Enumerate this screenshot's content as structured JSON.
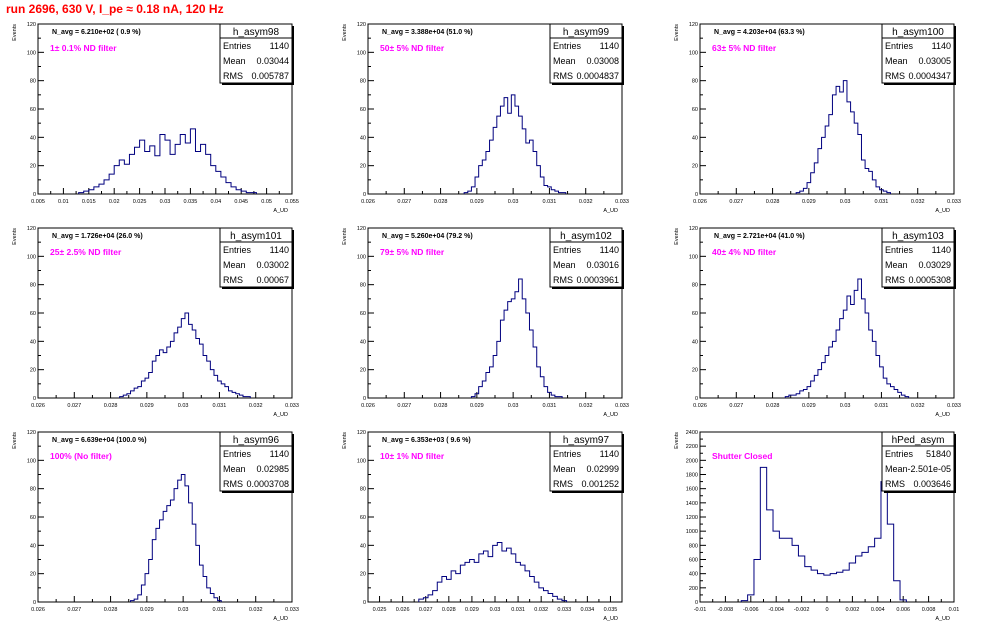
{
  "run_title": "run 2696,   630 V, I_pe ≈ 0.18 nA, 120 Hz",
  "colors": {
    "histogram": "#00007f",
    "filter_label": "#ff00ff",
    "title": "#ff0000",
    "axis": "#000000"
  },
  "chart_data": [
    {
      "type": "histogram",
      "name": "h_asym98",
      "navg_text": "N_avg = 6.210e+02 ( 0.9 %)",
      "filter_label": "1± 0.1% ND filter",
      "stats": {
        "entries": "1140",
        "mean": "0.03044",
        "rms": "0.005787"
      },
      "ylabel": "Events",
      "xlabel": "A_UD",
      "xlim": [
        0.005,
        0.055
      ],
      "ylim": [
        0,
        120
      ],
      "xticks": [
        "0.005",
        "0.01",
        "0.015",
        "0.02",
        "0.025",
        "0.03",
        "0.035",
        "0.04",
        "0.045",
        "0.05",
        "0.055"
      ],
      "yticks": [
        "0",
        "20",
        "40",
        "60",
        "80",
        "100",
        "120"
      ],
      "x": [
        0.0135,
        0.0145,
        0.0155,
        0.0165,
        0.0175,
        0.0185,
        0.0195,
        0.0205,
        0.0215,
        0.0225,
        0.0235,
        0.0245,
        0.0255,
        0.0265,
        0.0275,
        0.0285,
        0.0295,
        0.0305,
        0.0315,
        0.0325,
        0.0335,
        0.0345,
        0.0355,
        0.0365,
        0.0375,
        0.0385,
        0.0395,
        0.0405,
        0.0415,
        0.0425,
        0.0435,
        0.0445,
        0.0455,
        0.0465,
        0.0475
      ],
      "values": [
        1,
        2,
        3,
        5,
        7,
        10,
        14,
        20,
        24,
        21,
        28,
        33,
        38,
        30,
        34,
        27,
        42,
        38,
        28,
        35,
        42,
        36,
        46,
        30,
        35,
        28,
        20,
        16,
        12,
        8,
        5,
        3,
        2,
        1,
        1
      ]
    },
    {
      "type": "histogram",
      "name": "h_asym99",
      "navg_text": "N_avg = 3.388e+04 (51.0 %)",
      "filter_label": "50± 5% ND filter",
      "stats": {
        "entries": "1140",
        "mean": "0.03008",
        "rms": "0.0004837"
      },
      "ylabel": "Events",
      "xlabel": "A_UD",
      "xlim": [
        0.026,
        0.033
      ],
      "ylim": [
        0,
        120
      ],
      "xticks": [
        "0.026",
        "0.027",
        "0.028",
        "0.029",
        "0.03",
        "0.031",
        "0.032",
        "0.033"
      ],
      "yticks": [
        "0",
        "20",
        "40",
        "60",
        "80",
        "100",
        "120"
      ],
      "x": [
        0.0287,
        0.0288,
        0.0289,
        0.029,
        0.0291,
        0.0292,
        0.0293,
        0.0294,
        0.0295,
        0.0296,
        0.0297,
        0.0298,
        0.0299,
        0.03,
        0.0301,
        0.0302,
        0.0303,
        0.0304,
        0.0305,
        0.0306,
        0.0307,
        0.0308,
        0.0309,
        0.031,
        0.0311,
        0.0312,
        0.0313,
        0.0314
      ],
      "values": [
        1,
        2,
        5,
        12,
        20,
        24,
        30,
        38,
        47,
        55,
        62,
        68,
        57,
        70,
        62,
        55,
        46,
        36,
        38,
        30,
        20,
        12,
        6,
        5,
        3,
        2,
        1,
        1
      ]
    },
    {
      "type": "histogram",
      "name": "h_asym100",
      "navg_text": "N_avg = 4.203e+04 (63.3 %)",
      "filter_label": "63± 5% ND filter",
      "stats": {
        "entries": "1140",
        "mean": "0.03005",
        "rms": "0.0004347"
      },
      "ylabel": "Events",
      "xlabel": "A_UD",
      "xlim": [
        0.026,
        0.033
      ],
      "ylim": [
        0,
        120
      ],
      "xticks": [
        "0.026",
        "0.027",
        "0.028",
        "0.029",
        "0.03",
        "0.031",
        "0.032",
        "0.033"
      ],
      "yticks": [
        "0",
        "20",
        "40",
        "60",
        "80",
        "100",
        "120"
      ],
      "x": [
        0.0287,
        0.0288,
        0.0289,
        0.029,
        0.0291,
        0.0292,
        0.0293,
        0.0294,
        0.0295,
        0.0296,
        0.0297,
        0.0298,
        0.0299,
        0.03,
        0.0301,
        0.0302,
        0.0303,
        0.0304,
        0.0305,
        0.0306,
        0.0307,
        0.0308,
        0.0309,
        0.031,
        0.0311,
        0.0312
      ],
      "values": [
        1,
        2,
        4,
        8,
        15,
        22,
        32,
        40,
        48,
        56,
        70,
        76,
        72,
        80,
        65,
        58,
        50,
        42,
        24,
        18,
        16,
        10,
        5,
        3,
        2,
        1
      ]
    },
    {
      "type": "histogram",
      "name": "h_asym101",
      "navg_text": "N_avg = 1.726e+04 (26.0 %)",
      "filter_label": "25± 2.5% ND filter",
      "stats": {
        "entries": "1140",
        "mean": "0.03002",
        "rms": "0.00067"
      },
      "ylabel": "Events",
      "xlabel": "A_UD",
      "xlim": [
        0.026,
        0.033
      ],
      "ylim": [
        0,
        120
      ],
      "xticks": [
        "0.026",
        "0.027",
        "0.028",
        "0.029",
        "0.03",
        "0.031",
        "0.032",
        "0.033"
      ],
      "yticks": [
        "0",
        "20",
        "40",
        "60",
        "80",
        "100",
        "120"
      ],
      "x": [
        0.0283,
        0.0284,
        0.0285,
        0.0286,
        0.0287,
        0.0288,
        0.0289,
        0.029,
        0.0291,
        0.0292,
        0.0293,
        0.0294,
        0.0295,
        0.0296,
        0.0297,
        0.0298,
        0.0299,
        0.03,
        0.0301,
        0.0302,
        0.0303,
        0.0304,
        0.0305,
        0.0306,
        0.0307,
        0.0308,
        0.0309,
        0.031,
        0.0311,
        0.0312,
        0.0313,
        0.0314,
        0.0315,
        0.0316,
        0.0317,
        0.0318
      ],
      "values": [
        1,
        2,
        3,
        5,
        7,
        8,
        12,
        14,
        18,
        26,
        30,
        34,
        32,
        36,
        40,
        46,
        50,
        56,
        60,
        52,
        48,
        42,
        38,
        30,
        26,
        20,
        16,
        12,
        10,
        8,
        5,
        4,
        3,
        2,
        1,
        1
      ]
    },
    {
      "type": "histogram",
      "name": "h_asym102",
      "navg_text": "N_avg = 5.260e+04 (79.2 %)",
      "filter_label": "79± 5% ND filter",
      "stats": {
        "entries": "1140",
        "mean": "0.03016",
        "rms": "0.0003961"
      },
      "ylabel": "Events",
      "xlabel": "A_UD",
      "xlim": [
        0.026,
        0.033
      ],
      "ylim": [
        0,
        120
      ],
      "xticks": [
        "0.026",
        "0.027",
        "0.028",
        "0.029",
        "0.03",
        "0.031",
        "0.032",
        "0.033"
      ],
      "yticks": [
        "0",
        "20",
        "40",
        "60",
        "80",
        "100",
        "120"
      ],
      "x": [
        0.0289,
        0.029,
        0.0291,
        0.0292,
        0.0293,
        0.0294,
        0.0295,
        0.0296,
        0.0297,
        0.0298,
        0.0299,
        0.03,
        0.0301,
        0.0302,
        0.0303,
        0.0304,
        0.0305,
        0.0306,
        0.0307,
        0.0308,
        0.0309,
        0.031,
        0.0311,
        0.0312,
        0.0313
      ],
      "values": [
        1,
        3,
        8,
        12,
        18,
        22,
        30,
        40,
        55,
        62,
        68,
        70,
        75,
        84,
        70,
        60,
        48,
        36,
        22,
        15,
        8,
        4,
        2,
        1,
        1
      ]
    },
    {
      "type": "histogram",
      "name": "h_asym103",
      "navg_text": "N_avg = 2.721e+04 (41.0 %)",
      "filter_label": "40± 4% ND filter",
      "stats": {
        "entries": "1140",
        "mean": "0.03029",
        "rms": "0.0005308"
      },
      "ylabel": "Events",
      "xlabel": "A_UD",
      "xlim": [
        0.026,
        0.033
      ],
      "ylim": [
        0,
        120
      ],
      "xticks": [
        "0.026",
        "0.027",
        "0.028",
        "0.029",
        "0.03",
        "0.031",
        "0.032",
        "0.033"
      ],
      "yticks": [
        "0",
        "20",
        "40",
        "60",
        "80",
        "100",
        "120"
      ],
      "x": [
        0.0284,
        0.0285,
        0.0286,
        0.0287,
        0.0288,
        0.0289,
        0.029,
        0.0291,
        0.0292,
        0.0293,
        0.0294,
        0.0295,
        0.0296,
        0.0297,
        0.0298,
        0.0299,
        0.03,
        0.0301,
        0.0302,
        0.0303,
        0.0304,
        0.0305,
        0.0306,
        0.0307,
        0.0308,
        0.0309,
        0.031,
        0.0311,
        0.0312,
        0.0313,
        0.0314,
        0.0315,
        0.0316,
        0.0317
      ],
      "values": [
        1,
        2,
        2,
        3,
        5,
        6,
        8,
        12,
        16,
        20,
        25,
        30,
        36,
        40,
        48,
        56,
        62,
        72,
        66,
        76,
        84,
        70,
        60,
        48,
        40,
        30,
        22,
        14,
        10,
        8,
        6,
        4,
        2,
        1
      ]
    },
    {
      "type": "histogram",
      "name": "h_asym96",
      "navg_text": "N_avg = 6.639e+04 (100.0 %)",
      "filter_label": "100% (No filter)",
      "stats": {
        "entries": "1140",
        "mean": "0.02985",
        "rms": "0.0003708"
      },
      "ylabel": "Events",
      "xlabel": "A_UD",
      "xlim": [
        0.026,
        0.033
      ],
      "ylim": [
        0,
        120
      ],
      "xticks": [
        "0.026",
        "0.027",
        "0.028",
        "0.029",
        "0.03",
        "0.031",
        "0.032",
        "0.033"
      ],
      "yticks": [
        "0",
        "20",
        "40",
        "60",
        "80",
        "100",
        "120"
      ],
      "x": [
        0.0286,
        0.0287,
        0.0288,
        0.0289,
        0.029,
        0.0291,
        0.0292,
        0.0293,
        0.0294,
        0.0295,
        0.0296,
        0.0297,
        0.0298,
        0.0299,
        0.03,
        0.0301,
        0.0302,
        0.0303,
        0.0304,
        0.0305,
        0.0306,
        0.0307,
        0.0308,
        0.0309,
        0.031
      ],
      "values": [
        1,
        2,
        5,
        12,
        20,
        30,
        44,
        52,
        58,
        64,
        68,
        72,
        80,
        86,
        90,
        82,
        70,
        55,
        40,
        26,
        18,
        10,
        6,
        3,
        1
      ]
    },
    {
      "type": "histogram",
      "name": "h_asym97",
      "navg_text": "N_avg = 6.353e+03 ( 9.6 %)",
      "filter_label": "10± 1% ND filter",
      "stats": {
        "entries": "1140",
        "mean": "0.02999",
        "rms": "0.001252"
      },
      "ylabel": "Events",
      "xlabel": "A_UD",
      "xlim": [
        0.0245,
        0.0355
      ],
      "ylim": [
        0,
        120
      ],
      "xticks": [
        "0.025",
        "0.026",
        "0.027",
        "0.028",
        "0.029",
        "0.03",
        "0.031",
        "0.032",
        "0.033",
        "0.034",
        "0.035"
      ],
      "yticks": [
        "0",
        "20",
        "40",
        "60",
        "80",
        "100",
        "120"
      ],
      "x": [
        0.0268,
        0.027,
        0.0272,
        0.0274,
        0.0276,
        0.0278,
        0.028,
        0.0282,
        0.0284,
        0.0286,
        0.0288,
        0.029,
        0.0292,
        0.0294,
        0.0296,
        0.0298,
        0.03,
        0.0302,
        0.0304,
        0.0306,
        0.0308,
        0.031,
        0.0312,
        0.0314,
        0.0316,
        0.0318,
        0.032,
        0.0322,
        0.0324,
        0.0326,
        0.0328,
        0.033
      ],
      "values": [
        2,
        3,
        5,
        8,
        14,
        18,
        16,
        22,
        20,
        26,
        28,
        30,
        28,
        34,
        36,
        32,
        40,
        42,
        36,
        38,
        34,
        28,
        26,
        22,
        18,
        14,
        10,
        8,
        6,
        4,
        2,
        1
      ]
    },
    {
      "type": "histogram",
      "name": "hPed_asym",
      "navg_text": "",
      "filter_label": "Shutter Closed",
      "stats": {
        "entries": "51840",
        "mean": "-2.501e-05",
        "rms": "0.003646"
      },
      "ylabel": "Events",
      "xlabel": "A_UD",
      "xlim": [
        -0.01,
        0.01
      ],
      "ylim": [
        0,
        2400
      ],
      "xticks": [
        "-0.01",
        "-0.008",
        "-0.006",
        "-0.004",
        "-0.002",
        "0",
        "0.002",
        "0.004",
        "0.006",
        "0.008",
        "0.01"
      ],
      "yticks": [
        "0",
        "200",
        "400",
        "600",
        "800",
        "1000",
        "1200",
        "1400",
        "1600",
        "1800",
        "2000",
        "2200",
        "2400"
      ],
      "x": [
        -0.0065,
        -0.006,
        -0.0055,
        -0.005,
        -0.0045,
        -0.004,
        -0.0035,
        -0.003,
        -0.0025,
        -0.002,
        -0.0015,
        -0.001,
        -0.0005,
        0,
        0.0005,
        0.001,
        0.0015,
        0.002,
        0.0025,
        0.003,
        0.0035,
        0.004,
        0.0045,
        0.005,
        0.0055,
        0.006
      ],
      "values": [
        20,
        100,
        600,
        1900,
        1300,
        1000,
        900,
        900,
        800,
        650,
        500,
        450,
        400,
        380,
        400,
        420,
        450,
        550,
        650,
        700,
        780,
        900,
        1700,
        1100,
        300,
        30
      ]
    }
  ]
}
